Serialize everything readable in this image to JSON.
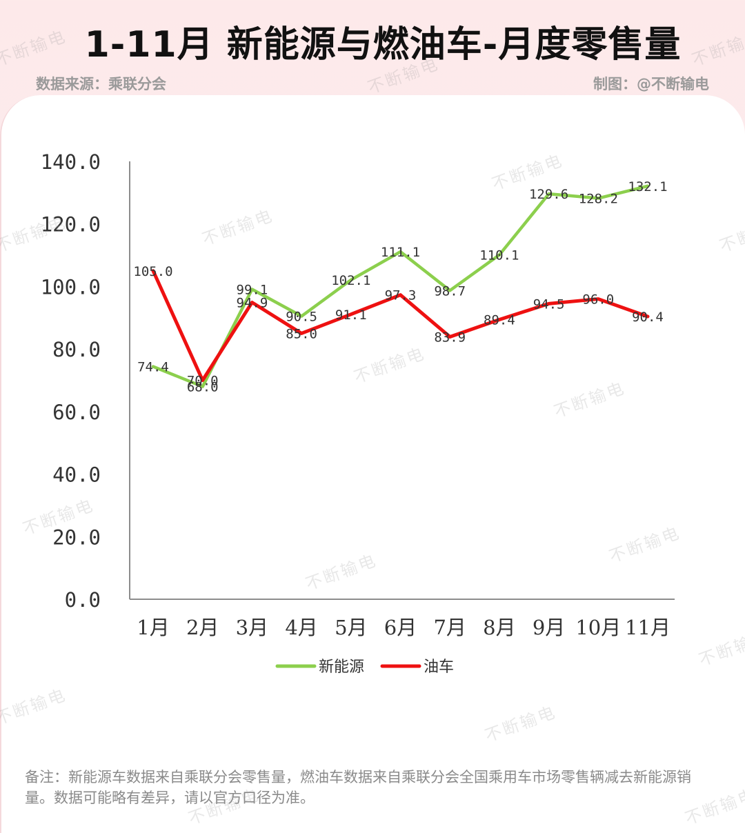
{
  "header": {
    "title": "1-11月 新能源与燃油车-月度零售量",
    "source": "数据来源：乘联分会",
    "maker": "制图：@不断输电"
  },
  "watermark_text": "不断输电",
  "note": "备注：新能源车数据来自乘联分会零售量，燃油车数据来自乘联分会全国乘用车市场零售辆减去新能源销量。数据可能略有差异，请以官方口径为准。",
  "colors": {
    "nev": "#8ccf4d",
    "ice": "#ee1111",
    "axis": "#8c8c8c"
  },
  "chart_data": {
    "type": "line",
    "categories": [
      "1月",
      "2月",
      "3月",
      "4月",
      "5月",
      "6月",
      "7月",
      "8月",
      "9月",
      "10月",
      "11月"
    ],
    "series": [
      {
        "name": "新能源",
        "color": "#8ccf4d",
        "values": [
          74.4,
          68.0,
          99.1,
          90.5,
          102.1,
          111.1,
          98.7,
          110.1,
          129.6,
          128.2,
          132.1
        ]
      },
      {
        "name": "油车",
        "color": "#ee1111",
        "values": [
          105.0,
          70.0,
          94.9,
          85.0,
          91.1,
          97.3,
          83.9,
          89.4,
          94.5,
          96.0,
          90.4
        ]
      }
    ],
    "ylim": [
      0,
      140
    ],
    "yticks": [
      "0.0",
      "20.0",
      "40.0",
      "60.0",
      "80.0",
      "100.0",
      "120.0",
      "140.0"
    ],
    "grid": false,
    "legend": "bottom-center",
    "data_labels": true
  }
}
